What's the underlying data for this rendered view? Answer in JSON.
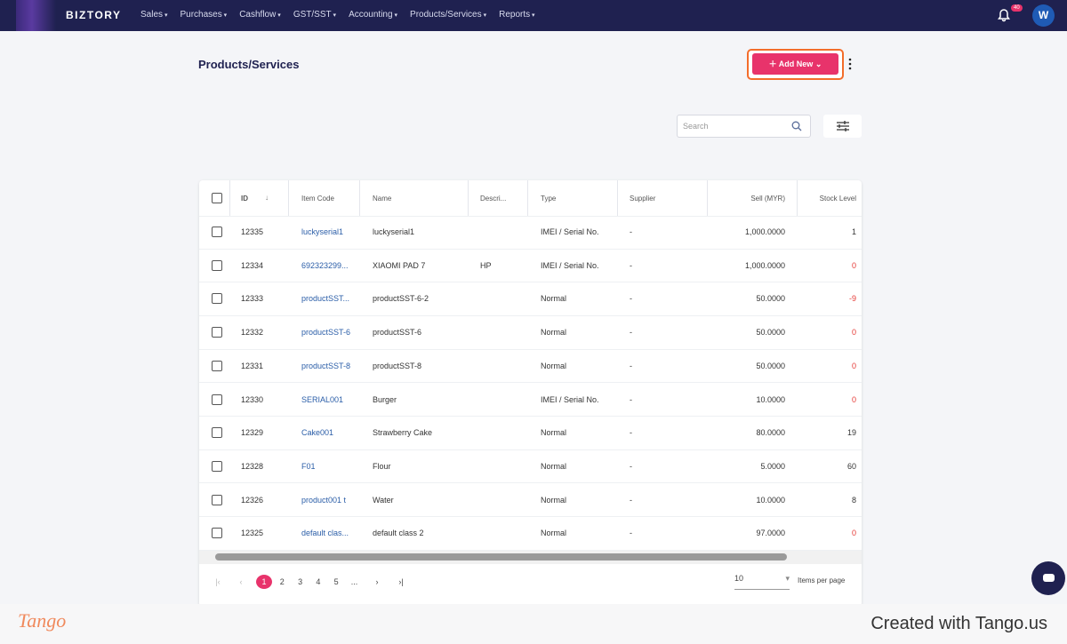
{
  "nav": {
    "brand": "BIZTORY",
    "menu": [
      "Sales",
      "Purchases",
      "Cashflow",
      "GST/SST",
      "Accounting",
      "Products/Services",
      "Reports"
    ],
    "notifications": "40",
    "avatar": "W"
  },
  "header": {
    "title": "Products/Services",
    "add_button": "Add New"
  },
  "search": {
    "placeholder": "Search"
  },
  "table": {
    "columns": [
      "ID",
      "Item Code",
      "Name",
      "Descri...",
      "Type",
      "Supplier",
      "Sell (MYR)",
      "Stock Level"
    ],
    "rows": [
      [
        "12335",
        "luckyserial1",
        "luckyserial1",
        "",
        "IMEI / Serial No.",
        "-",
        "1,000.0000",
        "1"
      ],
      [
        "12334",
        "692323299...",
        "XIAOMI PAD 7",
        "HP",
        "IMEI / Serial No.",
        "-",
        "1,000.0000",
        "0"
      ],
      [
        "12333",
        "productSST...",
        "productSST-6-2",
        "",
        "Normal",
        "-",
        "50.0000",
        "-9"
      ],
      [
        "12332",
        "productSST-6",
        "productSST-6",
        "",
        "Normal",
        "-",
        "50.0000",
        "0"
      ],
      [
        "12331",
        "productSST-8",
        "productSST-8",
        "",
        "Normal",
        "-",
        "50.0000",
        "0"
      ],
      [
        "12330",
        "SERIAL001",
        "Burger",
        "",
        "IMEI / Serial No.",
        "-",
        "10.0000",
        "0"
      ],
      [
        "12329",
        "Cake001",
        "Strawberry Cake",
        "",
        "Normal",
        "-",
        "80.0000",
        "19"
      ],
      [
        "12328",
        "F01",
        "Flour",
        "",
        "Normal",
        "-",
        "5.0000",
        "60"
      ],
      [
        "12326",
        "product001 t",
        "Water",
        "",
        "Normal",
        "-",
        "10.0000",
        "8"
      ],
      [
        "12325",
        "default clas...",
        "default class 2",
        "",
        "Normal",
        "-",
        "97.0000",
        "0"
      ]
    ]
  },
  "pagination": {
    "pages": [
      "1",
      "2",
      "3",
      "4",
      "5",
      "..."
    ],
    "page_size": "10",
    "page_size_label": "Items per page"
  },
  "footer": {
    "logo": "Tango",
    "credit": "Created with Tango.us"
  }
}
